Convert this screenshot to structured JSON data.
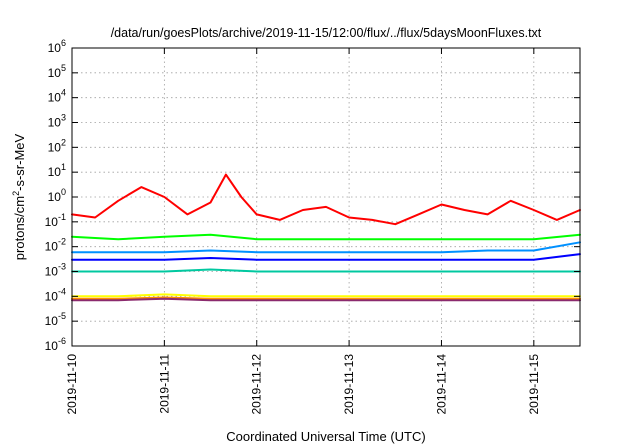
{
  "chart_data": {
    "type": "line",
    "title": "/data/run/goesPlots/archive/2019-11-15/12:00/flux/../flux/5daysMoonFluxes.txt",
    "xlabel": "Coordinated Universal Time (UTC)",
    "ylabel": {
      "prefix": "protons/cm",
      "sup": "2",
      "suffix": "-s-sr-MeV"
    },
    "yscale": "log",
    "ylim": [
      1e-06,
      1000000.0
    ],
    "y_ticks": [
      {
        "base": "10",
        "exp": "-6"
      },
      {
        "base": "10",
        "exp": "-5"
      },
      {
        "base": "10",
        "exp": "-4"
      },
      {
        "base": "10",
        "exp": "-3"
      },
      {
        "base": "10",
        "exp": "-2"
      },
      {
        "base": "10",
        "exp": "-1"
      },
      {
        "base": "10",
        "exp": "0"
      },
      {
        "base": "10",
        "exp": "1"
      },
      {
        "base": "10",
        "exp": "2"
      },
      {
        "base": "10",
        "exp": "3"
      },
      {
        "base": "10",
        "exp": "4"
      },
      {
        "base": "10",
        "exp": "5"
      },
      {
        "base": "10",
        "exp": "6"
      }
    ],
    "xlim": [
      "2019-11-10",
      "2019-11-15 12:00"
    ],
    "x_ticks": [
      "2019-11-10",
      "2019-11-11",
      "2019-11-12",
      "2019-11-13",
      "2019-11-14",
      "2019-11-15"
    ],
    "grid": true,
    "series": [
      {
        "color": "#ff0000",
        "x": [
          "2019-11-10 00:00",
          "2019-11-10 06:00",
          "2019-11-10 12:00",
          "2019-11-10 18:00",
          "2019-11-11 00:00",
          "2019-11-11 06:00",
          "2019-11-11 12:00",
          "2019-11-11 16:00",
          "2019-11-11 20:00",
          "2019-11-12 00:00",
          "2019-11-12 06:00",
          "2019-11-12 12:00",
          "2019-11-12 18:00",
          "2019-11-13 00:00",
          "2019-11-13 06:00",
          "2019-11-13 12:00",
          "2019-11-13 18:00",
          "2019-11-14 00:00",
          "2019-11-14 06:00",
          "2019-11-14 12:00",
          "2019-11-14 18:00",
          "2019-11-15 00:00",
          "2019-11-15 06:00",
          "2019-11-15 12:00"
        ],
        "y": [
          0.2,
          0.15,
          0.7,
          2.5,
          1.0,
          0.2,
          0.6,
          8.0,
          1.0,
          0.2,
          0.12,
          0.3,
          0.4,
          0.15,
          0.12,
          0.08,
          0.2,
          0.5,
          0.3,
          0.2,
          0.7,
          0.3,
          0.12,
          0.3
        ]
      },
      {
        "color": "#00ff00",
        "x": [
          "2019-11-10 00:00",
          "2019-11-10 12:00",
          "2019-11-11 00:00",
          "2019-11-11 12:00",
          "2019-11-12 00:00",
          "2019-11-12 12:00",
          "2019-11-13 00:00",
          "2019-11-13 12:00",
          "2019-11-14 00:00",
          "2019-11-14 12:00",
          "2019-11-15 00:00",
          "2019-11-15 12:00"
        ],
        "y": [
          0.025,
          0.02,
          0.025,
          0.03,
          0.02,
          0.02,
          0.02,
          0.02,
          0.02,
          0.02,
          0.02,
          0.03
        ]
      },
      {
        "color": "#0090ff",
        "x": [
          "2019-11-10 00:00",
          "2019-11-10 12:00",
          "2019-11-11 00:00",
          "2019-11-11 12:00",
          "2019-11-12 00:00",
          "2019-11-12 12:00",
          "2019-11-13 00:00",
          "2019-11-13 12:00",
          "2019-11-14 00:00",
          "2019-11-14 12:00",
          "2019-11-15 00:00",
          "2019-11-15 12:00"
        ],
        "y": [
          0.006,
          0.006,
          0.006,
          0.007,
          0.006,
          0.006,
          0.006,
          0.006,
          0.006,
          0.007,
          0.007,
          0.015
        ]
      },
      {
        "color": "#0000ff",
        "x": [
          "2019-11-10 00:00",
          "2019-11-10 12:00",
          "2019-11-11 00:00",
          "2019-11-11 12:00",
          "2019-11-12 00:00",
          "2019-11-12 12:00",
          "2019-11-13 00:00",
          "2019-11-13 12:00",
          "2019-11-14 00:00",
          "2019-11-14 12:00",
          "2019-11-15 00:00",
          "2019-11-15 12:00"
        ],
        "y": [
          0.003,
          0.003,
          0.003,
          0.0035,
          0.003,
          0.003,
          0.003,
          0.003,
          0.003,
          0.003,
          0.003,
          0.005
        ]
      },
      {
        "color": "#00c8a0",
        "x": [
          "2019-11-10 00:00",
          "2019-11-10 12:00",
          "2019-11-11 00:00",
          "2019-11-11 12:00",
          "2019-11-12 00:00",
          "2019-11-12 12:00",
          "2019-11-13 00:00",
          "2019-11-13 12:00",
          "2019-11-14 00:00",
          "2019-11-14 12:00",
          "2019-11-15 00:00",
          "2019-11-15 12:00"
        ],
        "y": [
          0.001,
          0.001,
          0.001,
          0.0012,
          0.001,
          0.001,
          0.001,
          0.001,
          0.001,
          0.001,
          0.001,
          0.001
        ]
      },
      {
        "color": "#ffff00",
        "x": [
          "2019-11-10 00:00",
          "2019-11-10 12:00",
          "2019-11-11 00:00",
          "2019-11-11 12:00",
          "2019-11-12 00:00",
          "2019-11-12 12:00",
          "2019-11-13 00:00",
          "2019-11-13 12:00",
          "2019-11-14 00:00",
          "2019-11-14 12:00",
          "2019-11-15 00:00",
          "2019-11-15 12:00"
        ],
        "y": [
          0.0001,
          0.0001,
          0.00012,
          0.0001,
          0.0001,
          0.0001,
          0.0001,
          0.0001,
          0.0001,
          0.0001,
          0.0001,
          0.0001
        ]
      },
      {
        "color": "#ff8c00",
        "x": [
          "2019-11-10 00:00",
          "2019-11-10 12:00",
          "2019-11-11 00:00",
          "2019-11-11 12:00",
          "2019-11-12 00:00",
          "2019-11-12 12:00",
          "2019-11-13 00:00",
          "2019-11-13 12:00",
          "2019-11-14 00:00",
          "2019-11-14 12:00",
          "2019-11-15 00:00",
          "2019-11-15 12:00"
        ],
        "y": [
          8e-05,
          8e-05,
          9e-05,
          8e-05,
          8e-05,
          8e-05,
          8e-05,
          8e-05,
          8e-05,
          8e-05,
          8e-05,
          8e-05
        ]
      },
      {
        "color": "#8b2a6e",
        "x": [
          "2019-11-10 00:00",
          "2019-11-10 12:00",
          "2019-11-11 00:00",
          "2019-11-11 12:00",
          "2019-11-12 00:00",
          "2019-11-12 12:00",
          "2019-11-13 00:00",
          "2019-11-13 12:00",
          "2019-11-14 00:00",
          "2019-11-14 12:00",
          "2019-11-15 00:00",
          "2019-11-15 12:00"
        ],
        "y": [
          7e-05,
          7e-05,
          8e-05,
          7e-05,
          7e-05,
          7e-05,
          7e-05,
          7e-05,
          7e-05,
          7e-05,
          7e-05,
          7e-05
        ]
      }
    ]
  }
}
